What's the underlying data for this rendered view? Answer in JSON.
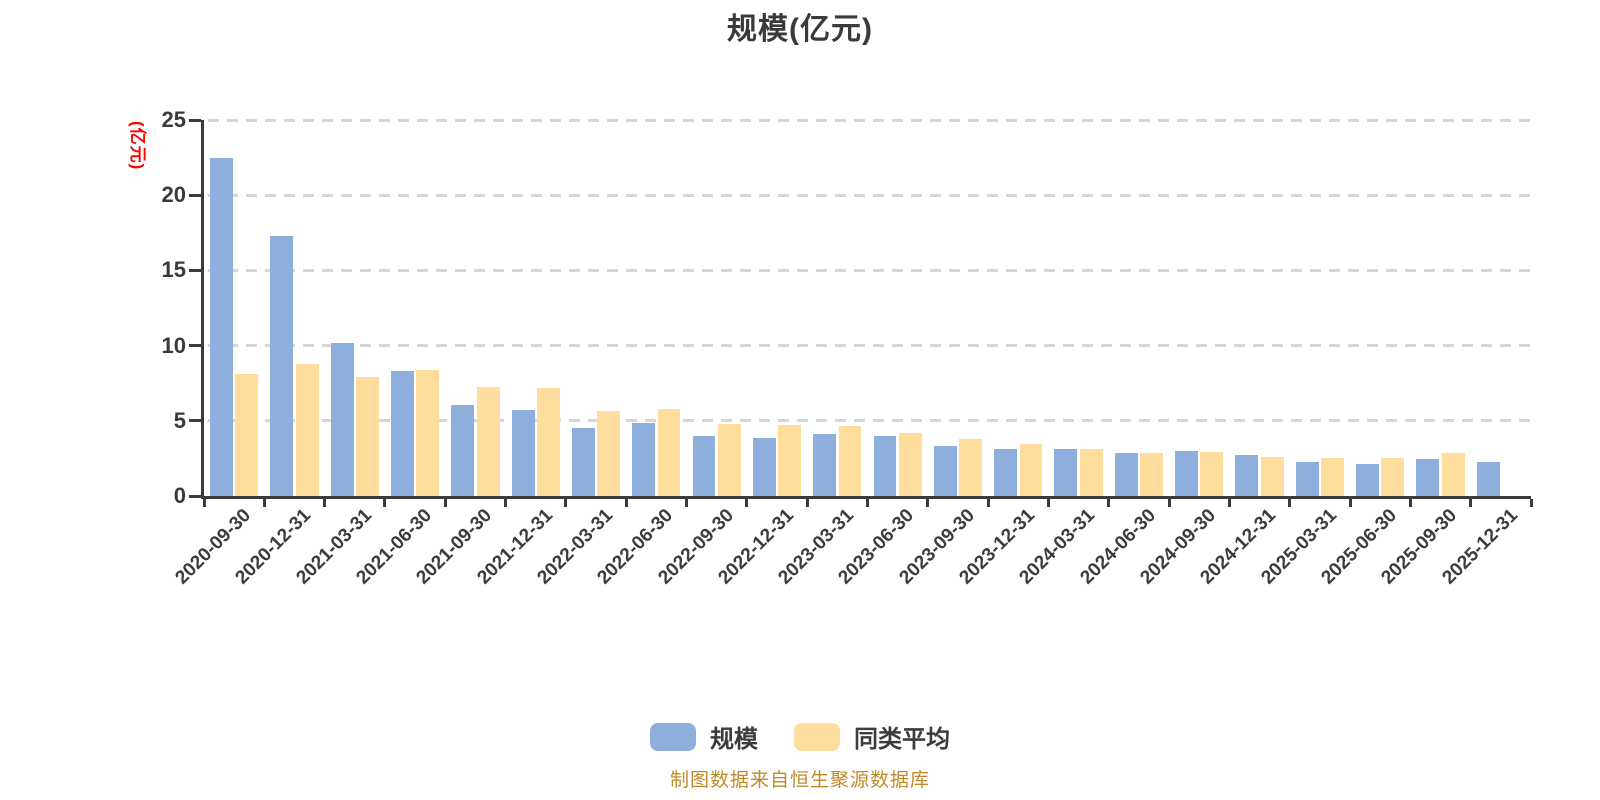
{
  "title": "规模(亿元)",
  "y_axis": {
    "name": "(亿元)",
    "ticks": [
      0,
      5,
      10,
      15,
      20,
      25
    ]
  },
  "legend": [
    {
      "label": "规模",
      "color": "#8EAEDC"
    },
    {
      "label": "同类平均",
      "color": "#FEDC9B"
    }
  ],
  "footer": "制图数据来自恒生聚源数据库",
  "colors": {
    "bar_blue": "#8EAEDC",
    "bar_yellow": "#FEDC9B",
    "axis": "#3B3B3B",
    "grid": "#D5D5D5",
    "text": "#3C3C3C",
    "y_name_red": "#FF0000",
    "footer_orange": "#C08A28"
  },
  "chart_data": {
    "type": "bar",
    "title": "规模(亿元)",
    "xlabel": "",
    "ylabel": "(亿元)",
    "ylim": [
      0,
      25
    ],
    "grid": "horizontal-dashed",
    "legend_position": "bottom",
    "categories": [
      "2020-09-30",
      "2020-12-31",
      "2021-03-31",
      "2021-06-30",
      "2021-09-30",
      "2021-12-31",
      "2022-03-31",
      "2022-06-30",
      "2022-09-30",
      "2022-12-31",
      "2023-03-31",
      "2023-06-30",
      "2023-09-30",
      "2023-12-31",
      "2024-03-31",
      "2024-06-30",
      "2024-09-30",
      "2024-12-31",
      "2025-03-31",
      "2025-06-30",
      "2025-09-30",
      "2025-12-31"
    ],
    "series": [
      {
        "name": "规模",
        "color": "#8EAEDC",
        "values": [
          22.45,
          17.3,
          10.2,
          8.3,
          6.05,
          5.7,
          4.5,
          4.85,
          4.0,
          3.85,
          4.1,
          4.0,
          3.3,
          3.1,
          3.1,
          2.85,
          3.0,
          2.7,
          2.25,
          2.15,
          2.45,
          2.25
        ]
      },
      {
        "name": "同类平均",
        "color": "#FEDC9B",
        "values": [
          8.1,
          8.8,
          7.9,
          8.35,
          7.25,
          7.2,
          5.65,
          5.8,
          4.8,
          4.7,
          4.65,
          4.2,
          3.8,
          3.45,
          3.1,
          2.85,
          2.95,
          2.6,
          2.55,
          2.55,
          2.85,
          null
        ]
      }
    ]
  }
}
